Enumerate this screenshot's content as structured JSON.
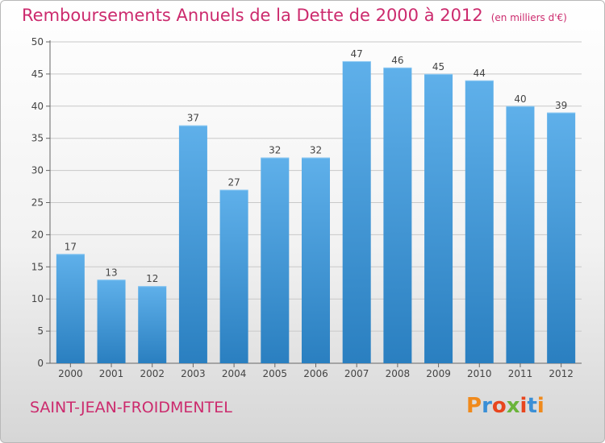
{
  "header": {
    "title": "Remboursements Annuels de la Dette de 2000 à 2012",
    "unit": "(en milliers d'€)"
  },
  "footer": {
    "commune": "SAINT-JEAN-FROIDMENTEL",
    "logo_text": "Proxiti"
  },
  "colors": {
    "title": "#cc2a6d",
    "bar_top": "#5fb0ea",
    "bar_bottom": "#2a7fc0",
    "logo": [
      "#f08a1c",
      "#3a8fd6",
      "#e8451e",
      "#6bb43a",
      "#e8451e",
      "#3a8fd6",
      "#f08a1c"
    ]
  },
  "chart_data": {
    "type": "bar",
    "title": "Remboursements Annuels de la Dette de 2000 à 2012",
    "xlabel": "",
    "ylabel": "",
    "ylim": [
      0,
      50
    ],
    "yticks": [
      0,
      5,
      10,
      15,
      20,
      25,
      30,
      35,
      40,
      45,
      50
    ],
    "grid": true,
    "categories": [
      "2000",
      "2001",
      "2002",
      "2003",
      "2004",
      "2005",
      "2006",
      "2007",
      "2008",
      "2009",
      "2010",
      "2011",
      "2012"
    ],
    "values": [
      17,
      13,
      12,
      37,
      27,
      32,
      32,
      47,
      46,
      45,
      44,
      40,
      39
    ]
  }
}
